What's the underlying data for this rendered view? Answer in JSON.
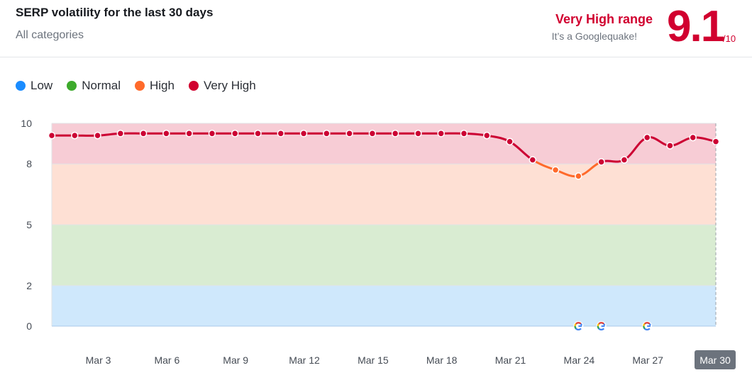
{
  "header": {
    "title": "SERP volatility for the last 30 days",
    "subtitle": "All categories",
    "range_label": "Very High range",
    "range_note": "It’s a Googlequake!",
    "score": "9.1",
    "score_max": "/10"
  },
  "legend": [
    {
      "label": "Low",
      "color": "#1a8cff"
    },
    {
      "label": "Normal",
      "color": "#3daa2c"
    },
    {
      "label": "High",
      "color": "#ff6a2b"
    },
    {
      "label": "Very High",
      "color": "#d1002f"
    }
  ],
  "colors": {
    "band_low": "#cfe8fc",
    "band_normal": "#d9ecd2",
    "band_high": "#fee0d4",
    "band_very_high": "#f7ccd5",
    "line_very_high": "#cc0033",
    "line_high": "#ff6a2b"
  },
  "chart_data": {
    "type": "line",
    "ylim": [
      0,
      10
    ],
    "yticks": [
      "0",
      "2",
      "5",
      "8",
      "10"
    ],
    "bands": [
      {
        "name": "Low",
        "from": 0,
        "to": 2
      },
      {
        "name": "Normal",
        "from": 2,
        "to": 5
      },
      {
        "name": "High",
        "from": 5,
        "to": 8
      },
      {
        "name": "Very High",
        "from": 8,
        "to": 10
      }
    ],
    "xticks": [
      "Mar 3",
      "Mar 6",
      "Mar 9",
      "Mar 12",
      "Mar 15",
      "Mar 18",
      "Mar 21",
      "Mar 24",
      "Mar 27",
      "Mar 30"
    ],
    "x": [
      "Mar 1",
      "Mar 2",
      "Mar 3",
      "Mar 4",
      "Mar 5",
      "Mar 6",
      "Mar 7",
      "Mar 8",
      "Mar 9",
      "Mar 10",
      "Mar 11",
      "Mar 12",
      "Mar 13",
      "Mar 14",
      "Mar 15",
      "Mar 16",
      "Mar 17",
      "Mar 18",
      "Mar 19",
      "Mar 20",
      "Mar 21",
      "Mar 22",
      "Mar 23",
      "Mar 24",
      "Mar 25",
      "Mar 26",
      "Mar 27",
      "Mar 28",
      "Mar 29",
      "Mar 30"
    ],
    "series": [
      {
        "values": [
          9.4,
          9.4,
          9.4,
          9.5,
          9.5,
          9.5,
          9.5,
          9.5,
          9.5,
          9.5,
          9.5,
          9.5,
          9.5,
          9.5,
          9.5,
          9.5,
          9.5,
          9.5,
          9.5,
          9.4,
          9.1,
          8.2,
          7.7,
          7.4,
          8.1,
          8.2,
          9.3,
          8.9,
          9.3,
          9.1
        ]
      }
    ],
    "google_update_markers": [
      "Mar 24",
      "Mar 25",
      "Mar 27"
    ],
    "highlighted_x": "Mar 30"
  }
}
